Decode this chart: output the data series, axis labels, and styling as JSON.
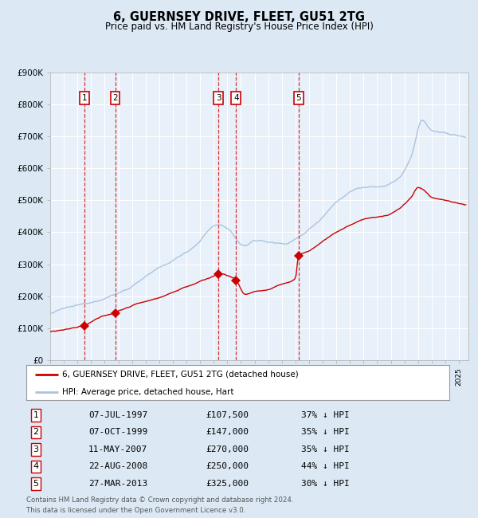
{
  "title": "6, GUERNSEY DRIVE, FLEET, GU51 2TG",
  "subtitle": "Price paid vs. HM Land Registry's House Price Index (HPI)",
  "legend_line1": "6, GUERNSEY DRIVE, FLEET, GU51 2TG (detached house)",
  "legend_line2": "HPI: Average price, detached house, Hart",
  "footer1": "Contains HM Land Registry data © Crown copyright and database right 2024.",
  "footer2": "This data is licensed under the Open Government Licence v3.0.",
  "hpi_color": "#aac4e0",
  "price_color": "#cc0000",
  "background_color": "#dce9f5",
  "plot_bg": "#e8f0fa",
  "grid_color": "#ffffff",
  "dashed_color": "#dd3333",
  "ylim": [
    0,
    900000
  ],
  "xlim_start": 1995.3,
  "xlim_end": 2025.7,
  "transactions": [
    {
      "num": 1,
      "date": "07-JUL-1997",
      "year": 1997.52,
      "price": 107500,
      "pct": "37% ↓ HPI"
    },
    {
      "num": 2,
      "date": "07-OCT-1999",
      "year": 1999.77,
      "price": 147000,
      "pct": "35% ↓ HPI"
    },
    {
      "num": 3,
      "date": "11-MAY-2007",
      "year": 2007.36,
      "price": 270000,
      "pct": "35% ↓ HPI"
    },
    {
      "num": 4,
      "date": "22-AUG-2008",
      "year": 2008.64,
      "price": 250000,
      "pct": "44% ↓ HPI"
    },
    {
      "num": 5,
      "date": "27-MAR-2013",
      "year": 2013.23,
      "price": 325000,
      "pct": "30% ↓ HPI"
    }
  ],
  "yticks": [
    0,
    100000,
    200000,
    300000,
    400000,
    500000,
    600000,
    700000,
    800000,
    900000
  ],
  "ytick_labels": [
    "£0",
    "£100K",
    "£200K",
    "£300K",
    "£400K",
    "£500K",
    "£600K",
    "£700K",
    "£800K",
    "£900K"
  ]
}
